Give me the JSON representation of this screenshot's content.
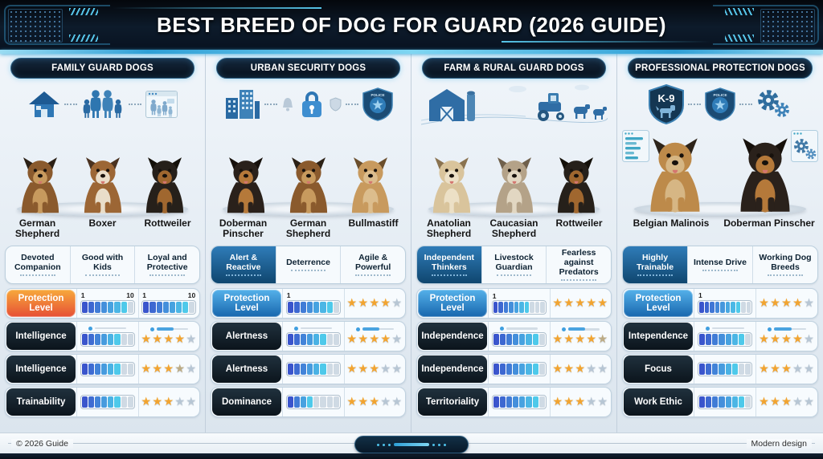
{
  "header": {
    "title": "BEST BREED OF DOG FOR GUARD (2026 GUIDE)"
  },
  "footer": {
    "left": "© 2026 Guide",
    "right": "Modern design"
  },
  "colors": {
    "bar_start": "#3a55cc",
    "bar_end": "#4ec9ea",
    "bar_empty": "#cfdae4",
    "gold_star": "#f2a430",
    "dim_star": "#bcab85",
    "gray_star": "#b7c6d4",
    "accent_cyan": "#39c4f2"
  },
  "columns": [
    {
      "title": "FAMILY GUARD DOGS",
      "icons": [
        "house-icon",
        "connector",
        "family-icon",
        "connector",
        "photo-frame-icon"
      ],
      "dogs": [
        {
          "name": "German Shepherd",
          "colors": {
            "body": "#8a5a2d",
            "dark": "#2b2015",
            "chest": "#c79a5e"
          }
        },
        {
          "name": "Boxer",
          "colors": {
            "body": "#9c6635",
            "dark": "#4a3220",
            "chest": "#e9ddc9"
          }
        },
        {
          "name": "Rottweiler",
          "colors": {
            "body": "#26201a",
            "dark": "#141009",
            "chest": "#a0672f"
          }
        }
      ],
      "traits": [
        {
          "text": "Devoted Companion",
          "hl": false
        },
        {
          "text": "Good with Kids",
          "hl": false
        },
        {
          "text": "Loyal and Protective",
          "hl": false
        }
      ],
      "rows": [
        {
          "label": "Protection Level",
          "style": "orange",
          "cells": [
            {
              "type": "bar",
              "segments": 8,
              "filled": 7,
              "min": "1",
              "max": "10"
            },
            {
              "type": "bar",
              "segments": 8,
              "filled": 7,
              "min": "1",
              "max": "10"
            }
          ]
        },
        {
          "label": "Intelligence",
          "style": "dark",
          "cells": [
            {
              "type": "bar",
              "segments": 8,
              "filled": 6,
              "slider": true
            },
            {
              "type": "stars",
              "states": [
                "gold",
                "gold",
                "gold",
                "gold",
                "gray"
              ],
              "slider": true
            }
          ]
        },
        {
          "label": "Intelligence",
          "style": "dark",
          "cells": [
            {
              "type": "bar",
              "segments": 8,
              "filled": 6
            },
            {
              "type": "stars",
              "states": [
                "gold",
                "gold",
                "gold",
                "dim",
                "gray"
              ]
            }
          ]
        },
        {
          "label": "Trainability",
          "style": "dark",
          "cells": [
            {
              "type": "bar",
              "segments": 8,
              "filled": 6
            },
            {
              "type": "stars",
              "states": [
                "gold",
                "gold",
                "gold",
                "gray",
                "gray"
              ]
            }
          ]
        }
      ]
    },
    {
      "title": "URBAN SECURITY DOGS",
      "icons": [
        "buildings-icon",
        "connector",
        "bell-icon",
        "lock-icon",
        "shield-small-icon",
        "connector",
        "badge-icon"
      ],
      "dogs": [
        {
          "name": "Doberman Pinscher",
          "colors": {
            "body": "#2a211b",
            "dark": "#16100b",
            "chest": "#b5793a"
          }
        },
        {
          "name": "German Shepherd",
          "colors": {
            "body": "#8a5a2d",
            "dark": "#2b2015",
            "chest": "#c79a5e"
          }
        },
        {
          "name": "Bullmastiff",
          "colors": {
            "body": "#c89a5e",
            "dark": "#6b4e2c",
            "chest": "#dcbd8d"
          }
        }
      ],
      "traits": [
        {
          "text": "Alert & Reactive",
          "hl": true
        },
        {
          "text": "Deterrence",
          "hl": false
        },
        {
          "text": "Agile & Powerful",
          "hl": false
        }
      ],
      "rows": [
        {
          "label": "Protection Level",
          "style": "blue",
          "cells": [
            {
              "type": "bar",
              "segments": 8,
              "filled": 7,
              "min": "1"
            },
            {
              "type": "stars",
              "states": [
                "gold",
                "gold",
                "gold",
                "gold",
                "gray"
              ]
            }
          ]
        },
        {
          "label": "Alertness",
          "style": "dark",
          "cells": [
            {
              "type": "bar",
              "segments": 8,
              "filled": 6,
              "slider": true
            },
            {
              "type": "stars",
              "states": [
                "gold",
                "gold",
                "gold",
                "gold",
                "gray"
              ],
              "slider": true
            }
          ]
        },
        {
          "label": "Alertness",
          "style": "dark",
          "cells": [
            {
              "type": "bar",
              "segments": 8,
              "filled": 6
            },
            {
              "type": "stars",
              "states": [
                "gold",
                "gold",
                "gold",
                "gray",
                "gray"
              ]
            }
          ]
        },
        {
          "label": "Dominance",
          "style": "dark",
          "cells": [
            {
              "type": "bar",
              "segments": 8,
              "filled": 4
            },
            {
              "type": "stars",
              "states": [
                "gold",
                "gold",
                "gold",
                "gray",
                "gray"
              ]
            }
          ]
        }
      ]
    },
    {
      "title": "FARM & RURAL GUARD DOGS",
      "icons": [
        "farm-icon"
      ],
      "dogs": [
        {
          "name": "Anatolian Shepherd",
          "colors": {
            "body": "#d9c49c",
            "dark": "#8a7350",
            "chest": "#ece0c6"
          }
        },
        {
          "name": "Caucasian Shepherd",
          "colors": {
            "body": "#b4a288",
            "dark": "#6f604c",
            "chest": "#e2d7c2"
          }
        },
        {
          "name": "Rottweiler",
          "colors": {
            "body": "#26201a",
            "dark": "#141009",
            "chest": "#a0672f"
          }
        }
      ],
      "traits": [
        {
          "text": "Independent Thinkers",
          "hl": true
        },
        {
          "text": "Livestock Guardian",
          "hl": false
        },
        {
          "text": "Fearless against Predators",
          "hl": false
        }
      ],
      "rows": [
        {
          "label": "Protection Level",
          "style": "blue",
          "cells": [
            {
              "type": "bar",
              "segments": 10,
              "filled": 7,
              "min": "1"
            },
            {
              "type": "stars",
              "states": [
                "gold",
                "gold",
                "gold",
                "gold",
                "gold"
              ]
            }
          ]
        },
        {
          "label": "Independence",
          "style": "dark",
          "cells": [
            {
              "type": "bar",
              "segments": 8,
              "filled": 7,
              "slider": true
            },
            {
              "type": "stars",
              "states": [
                "gold",
                "gold",
                "gold",
                "gold",
                "dim"
              ],
              "slider": true
            }
          ]
        },
        {
          "label": "Independence",
          "style": "dark",
          "cells": [
            {
              "type": "bar",
              "segments": 8,
              "filled": 7
            },
            {
              "type": "stars",
              "states": [
                "gold",
                "gold",
                "gold",
                "gray",
                "gray"
              ]
            }
          ]
        },
        {
          "label": "Territoriality",
          "style": "dark",
          "cells": [
            {
              "type": "bar",
              "segments": 8,
              "filled": 7
            },
            {
              "type": "stars",
              "states": [
                "gold",
                "gold",
                "gold",
                "gray",
                "gray"
              ]
            }
          ]
        }
      ]
    },
    {
      "title": "PROFESSIONAL PROTECTION DOGS",
      "icons": [
        "k9-shield-icon",
        "connector",
        "badge-icon",
        "connector",
        "gears-icon"
      ],
      "side_icons": [
        "panel-bars-icon",
        "panel-gears-icon"
      ],
      "dogs": [
        {
          "name": "Belgian Malinois",
          "colors": {
            "body": "#bd8a4a",
            "dark": "#2e241a",
            "chest": "#d6b684"
          }
        },
        {
          "name": "Doberman Pinscher",
          "colors": {
            "body": "#2a211b",
            "dark": "#16100b",
            "chest": "#b5793a"
          }
        }
      ],
      "traits": [
        {
          "text": "Highly Trainable",
          "hl": true
        },
        {
          "text": "Intense Drive",
          "hl": false
        },
        {
          "text": "Working Dog Breeds",
          "hl": false
        }
      ],
      "rows": [
        {
          "label": "Protection Level",
          "style": "blue",
          "cells": [
            {
              "type": "bar",
              "segments": 10,
              "filled": 8,
              "min": "1"
            },
            {
              "type": "stars",
              "states": [
                "gold",
                "gold",
                "gold",
                "gold",
                "gray"
              ]
            }
          ]
        },
        {
          "label": "Intependence",
          "style": "dark",
          "cells": [
            {
              "type": "bar",
              "segments": 8,
              "filled": 7,
              "slider": true
            },
            {
              "type": "stars",
              "states": [
                "gold",
                "gold",
                "gold",
                "gold",
                "gray"
              ],
              "slider": true
            }
          ]
        },
        {
          "label": "Focus",
          "style": "dark",
          "cells": [
            {
              "type": "bar",
              "segments": 8,
              "filled": 6
            },
            {
              "type": "stars",
              "states": [
                "gold",
                "gold",
                "gold",
                "gray",
                "gray"
              ]
            }
          ]
        },
        {
          "label": "Work Ethic",
          "style": "dark",
          "cells": [
            {
              "type": "bar",
              "segments": 8,
              "filled": 7
            },
            {
              "type": "stars",
              "states": [
                "gold",
                "gold",
                "gold",
                "gray",
                "gray"
              ]
            }
          ]
        }
      ]
    }
  ]
}
